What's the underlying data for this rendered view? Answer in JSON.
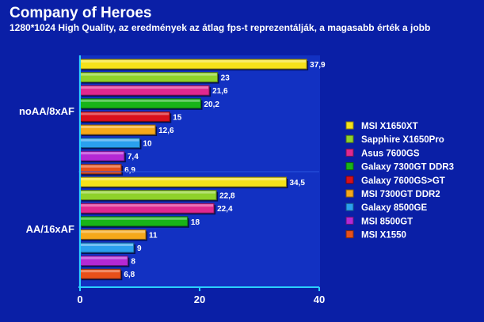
{
  "chart_data": {
    "type": "bar",
    "orientation": "horizontal",
    "title": "Company of Heroes",
    "subtitle": "1280*1024 High Quality, az eredmények az átlag fps-t reprezentálják, a magasabb érték a jobb",
    "xlabel": "",
    "ylabel": "",
    "xlim": [
      0,
      40
    ],
    "x_ticks": [
      "0",
      "20",
      "40"
    ],
    "grid": false,
    "legend_position": "right",
    "categories": [
      "noAA/8xAF",
      "AA/16xAF"
    ],
    "series": [
      {
        "name": "MSI X1650XT",
        "color": "#f5e21a",
        "values": [
          37.9,
          34.5
        ],
        "labels": [
          "37,9",
          "34,5"
        ]
      },
      {
        "name": "Sapphire X1650Pro",
        "color": "#8fd22a",
        "values": [
          23,
          22.8
        ],
        "labels": [
          "23",
          "22,8"
        ]
      },
      {
        "name": "Asus 7600GS",
        "color": "#e0288f",
        "values": [
          21.6,
          22.4
        ],
        "labels": [
          "21,6",
          "22,4"
        ]
      },
      {
        "name": "Galaxy 7300GT DDR3",
        "color": "#18b418",
        "values": [
          20.2,
          18
        ],
        "labels": [
          "20,2",
          "18"
        ]
      },
      {
        "name": "Galaxy 7600GS>GT",
        "color": "#d8101c",
        "values": [
          15,
          null
        ],
        "labels": [
          "15",
          ""
        ]
      },
      {
        "name": "MSI 7300GT DDR2",
        "color": "#f5a81a",
        "values": [
          12.6,
          11
        ],
        "labels": [
          "12,6",
          "11"
        ]
      },
      {
        "name": "Galaxy 8500GE",
        "color": "#2aa0ee",
        "values": [
          10,
          9
        ],
        "labels": [
          "10",
          "9"
        ]
      },
      {
        "name": "MSI 8500GT",
        "color": "#b428d4",
        "values": [
          7.4,
          8
        ],
        "labels": [
          "7,4",
          "8"
        ]
      },
      {
        "name": "MSI X1550",
        "color": "#e8501a",
        "values": [
          6.9,
          6.8
        ],
        "labels": [
          "6,9",
          "6,8"
        ]
      }
    ]
  },
  "colors": {
    "background": "#0a1fa6",
    "plot_background": "#1231c2",
    "axis_line": "#2ad0ff"
  }
}
